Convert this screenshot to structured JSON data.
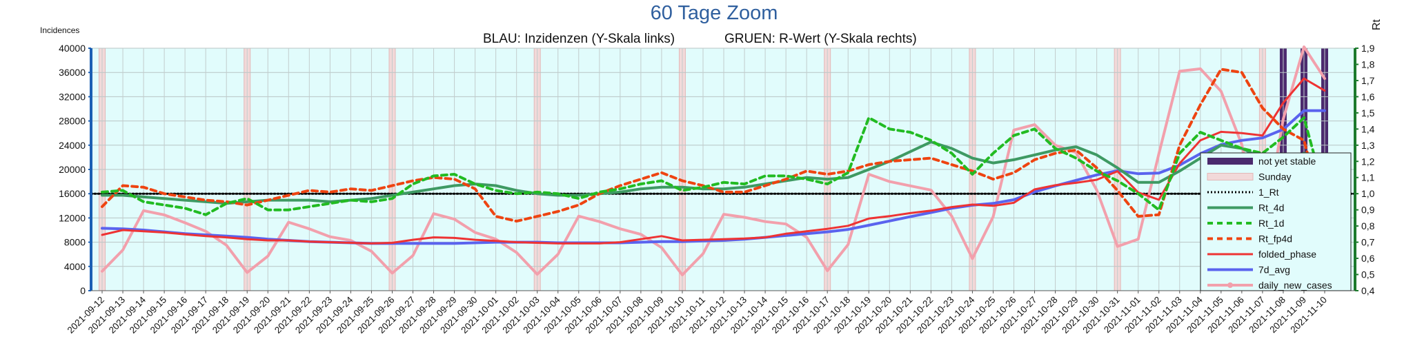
{
  "chart_data": {
    "type": "line",
    "title": "60 Tage Zoom",
    "subtitle_left": "BLAU: Inzidenzen (Y-Skala links)",
    "subtitle_right": "GRUEN: R-Wert (Y-Skala rechts)",
    "ylabel_left": "Incidences",
    "ylabel_right": "Rt",
    "ylim_left": [
      0,
      40000
    ],
    "ylim_right": [
      0.4,
      1.9
    ],
    "yticks_left": [
      "0",
      "4000",
      "8000",
      "12000",
      "16000",
      "20000",
      "24000",
      "28000",
      "32000",
      "36000",
      "40000"
    ],
    "yticks_right": [
      "0,4",
      "0,5",
      "0,6",
      "0,7",
      "0,8",
      "0,9",
      "1,0",
      "1,1",
      "1,2",
      "1,3",
      "1,4",
      "1,5",
      "1,6",
      "1,7",
      "1,8",
      "1,9"
    ],
    "grid": true,
    "legend_position": "right",
    "categories": [
      "2021-09-12",
      "2021-09-13",
      "2021-09-14",
      "2021-09-15",
      "2021-09-16",
      "2021-09-17",
      "2021-09-18",
      "2021-09-19",
      "2021-09-20",
      "2021-09-21",
      "2021-09-22",
      "2021-09-23",
      "2021-09-24",
      "2021-09-25",
      "2021-09-26",
      "2021-09-27",
      "2021-09-28",
      "2021-09-29",
      "2021-09-30",
      "2021-10-01",
      "2021-10-02",
      "2021-10-03",
      "2021-10-04",
      "2021-10-05",
      "2021-10-06",
      "2021-10-07",
      "2021-10-08",
      "2021-10-09",
      "2021-10-10",
      "2021-10-11",
      "2021-10-12",
      "2021-10-13",
      "2021-10-14",
      "2021-10-15",
      "2021-10-16",
      "2021-10-17",
      "2021-10-18",
      "2021-10-19",
      "2021-10-20",
      "2021-10-21",
      "2021-10-22",
      "2021-10-23",
      "2021-10-24",
      "2021-10-25",
      "2021-10-26",
      "2021-10-27",
      "2021-10-28",
      "2021-10-29",
      "2021-10-30",
      "2021-10-31",
      "2021-11-01",
      "2021-11-02",
      "2021-11-03",
      "2021-11-04",
      "2021-11-05",
      "2021-11-06",
      "2021-11-07",
      "2021-11-08",
      "2021-11-09",
      "2021-11-10"
    ],
    "sundays": [
      "2021-09-12",
      "2021-09-19",
      "2021-09-26",
      "2021-10-03",
      "2021-10-10",
      "2021-10-17",
      "2021-10-24",
      "2021-10-31",
      "2021-11-07"
    ],
    "not_yet_stable": [
      "2021-11-08",
      "2021-11-09",
      "2021-11-10"
    ],
    "series": [
      {
        "name": "1_Rt",
        "axis": "right",
        "color": "#000000",
        "style": "dotted",
        "values": [
          1.0,
          1.0,
          1.0,
          1.0,
          1.0,
          1.0,
          1.0,
          1.0,
          1.0,
          1.0,
          1.0,
          1.0,
          1.0,
          1.0,
          1.0,
          1.0,
          1.0,
          1.0,
          1.0,
          1.0,
          1.0,
          1.0,
          1.0,
          1.0,
          1.0,
          1.0,
          1.0,
          1.0,
          1.0,
          1.0,
          1.0,
          1.0,
          1.0,
          1.0,
          1.0,
          1.0,
          1.0,
          1.0,
          1.0,
          1.0,
          1.0,
          1.0,
          1.0,
          1.0,
          1.0,
          1.0,
          1.0,
          1.0,
          1.0,
          1.0,
          1.0,
          1.0,
          1.0,
          1.0,
          1.0,
          1.0,
          1.0,
          1.0,
          1.0,
          1.0
        ]
      },
      {
        "name": "Rt_4d",
        "axis": "right",
        "color": "#3e9a63",
        "style": "solid-thick",
        "values": [
          0.99,
          0.99,
          0.98,
          0.97,
          0.96,
          0.95,
          0.94,
          0.95,
          0.96,
          0.96,
          0.96,
          0.95,
          0.96,
          0.97,
          0.99,
          1.01,
          1.03,
          1.05,
          1.06,
          1.05,
          1.02,
          1.0,
          0.99,
          0.99,
          1.0,
          1.01,
          1.03,
          1.04,
          1.04,
          1.03,
          1.03,
          1.04,
          1.06,
          1.08,
          1.1,
          1.09,
          1.1,
          1.15,
          1.2,
          1.26,
          1.32,
          1.28,
          1.22,
          1.19,
          1.21,
          1.24,
          1.27,
          1.29,
          1.24,
          1.16,
          1.07,
          1.07,
          1.14,
          1.22,
          1.3,
          1.28,
          1.22,
          1.2,
          1.25,
          1.22
        ]
      },
      {
        "name": "Rt_1d",
        "axis": "right",
        "color": "#22bb22",
        "style": "dashed",
        "values": [
          1.01,
          1.02,
          0.95,
          0.93,
          0.91,
          0.87,
          0.94,
          0.97,
          0.9,
          0.9,
          0.92,
          0.94,
          0.96,
          0.95,
          0.97,
          1.06,
          1.11,
          1.12,
          1.06,
          1.02,
          1.0,
          1.01,
          1.0,
          0.97,
          1.01,
          1.03,
          1.06,
          1.08,
          1.02,
          1.04,
          1.07,
          1.06,
          1.11,
          1.11,
          1.09,
          1.06,
          1.13,
          1.47,
          1.4,
          1.38,
          1.33,
          1.25,
          1.12,
          1.25,
          1.36,
          1.4,
          1.28,
          1.22,
          1.14,
          1.08,
          1.0,
          0.9,
          1.25,
          1.38,
          1.33,
          1.28,
          1.25,
          1.35,
          1.47,
          1.0
        ]
      },
      {
        "name": "Rt_fp4d",
        "axis": "right",
        "color": "#ee4411",
        "style": "dashed",
        "values": [
          0.92,
          1.05,
          1.04,
          1.0,
          0.98,
          0.96,
          0.95,
          0.93,
          0.96,
          0.99,
          1.02,
          1.01,
          1.03,
          1.02,
          1.05,
          1.08,
          1.1,
          1.09,
          1.03,
          0.86,
          0.83,
          0.86,
          0.89,
          0.93,
          1.0,
          1.05,
          1.09,
          1.13,
          1.08,
          1.05,
          1.01,
          1.01,
          1.05,
          1.09,
          1.14,
          1.12,
          1.14,
          1.18,
          1.2,
          1.21,
          1.22,
          1.18,
          1.14,
          1.09,
          1.13,
          1.21,
          1.25,
          1.27,
          1.16,
          1.02,
          0.86,
          0.87,
          1.3,
          1.55,
          1.77,
          1.75,
          1.53,
          1.4,
          1.33,
          0.85
        ]
      },
      {
        "name": "folded_phase",
        "axis": "left",
        "color": "#ee3333",
        "style": "solid",
        "values": [
          9200,
          10000,
          9800,
          9600,
          9300,
          9000,
          8800,
          8500,
          8300,
          8300,
          8100,
          8000,
          7900,
          7800,
          7900,
          8400,
          8800,
          8700,
          8400,
          8200,
          8000,
          7900,
          7800,
          7800,
          7800,
          8000,
          8500,
          9000,
          8300,
          8400,
          8500,
          8600,
          8800,
          9400,
          9800,
          10200,
          10700,
          11900,
          12300,
          12800,
          13200,
          13800,
          14200,
          14000,
          14500,
          16700,
          17400,
          17800,
          18300,
          19700,
          16200,
          15000,
          21000,
          24800,
          26200,
          26000,
          25600,
          31000,
          35000,
          33000
        ]
      },
      {
        "name": "7d_avg",
        "axis": "left",
        "color": "#5a63ee",
        "style": "solid-thick",
        "values": [
          10300,
          10200,
          10000,
          9700,
          9400,
          9200,
          9000,
          8800,
          8500,
          8300,
          8100,
          8000,
          7900,
          7800,
          7800,
          7800,
          7800,
          7800,
          7900,
          8000,
          8000,
          8000,
          7900,
          7900,
          7900,
          7900,
          8000,
          8100,
          8100,
          8200,
          8300,
          8500,
          8800,
          9100,
          9400,
          9700,
          10100,
          10800,
          11500,
          12200,
          12900,
          13600,
          14100,
          14400,
          15000,
          16300,
          17300,
          18200,
          19100,
          19800,
          19300,
          19400,
          20700,
          22600,
          24100,
          24800,
          25200,
          26600,
          29700,
          29700
        ]
      },
      {
        "name": "daily_new_cases",
        "axis": "left",
        "color": "#f2a0ac",
        "style": "solid-marker",
        "values": [
          3200,
          6700,
          13200,
          12500,
          11200,
          9800,
          7500,
          3000,
          5700,
          11300,
          10200,
          8900,
          8300,
          6500,
          2900,
          5800,
          12700,
          11800,
          9600,
          8500,
          6300,
          2700,
          6000,
          12300,
          11400,
          10200,
          9300,
          7100,
          2600,
          6100,
          12600,
          12100,
          11400,
          11000,
          8800,
          3300,
          7600,
          19200,
          18000,
          17300,
          16600,
          12300,
          5300,
          12200,
          26500,
          27400,
          24000,
          22800,
          16600,
          7300,
          8500,
          22600,
          36200,
          36600,
          32900,
          24100,
          8400,
          28300,
          43000,
          35000
        ]
      }
    ]
  }
}
